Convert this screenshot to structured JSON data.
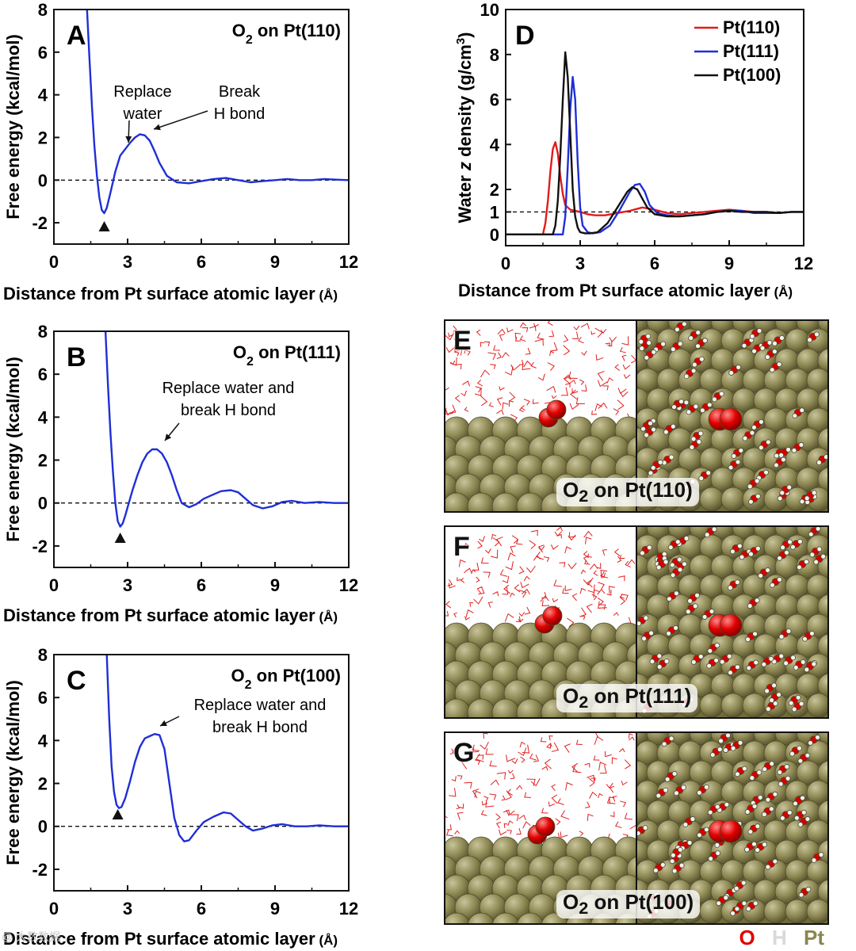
{
  "colors": {
    "red": "#e41a1c",
    "blue": "#1f2fd6",
    "black": "#111111",
    "oxygen": "#e00000",
    "hydrogen": "#e6e6e6",
    "platinum": "#8b8651"
  },
  "chart_data": [
    {
      "id": "A",
      "type": "line",
      "panel_label": "A",
      "title": "O2 on Pt(110)",
      "title_parts": {
        "prefix": "O",
        "sub": "2",
        "suffix": " on Pt(110)"
      },
      "xlabel": "Distance from Pt surface atomic layer",
      "xlabel_unit": " (Å)",
      "ylabel": "Free energy (kcal/mol)",
      "xlim": [
        0,
        12
      ],
      "ylim": [
        -3,
        8
      ],
      "xticks": [
        0,
        3,
        6,
        9,
        12
      ],
      "yticks": [
        -2,
        0,
        2,
        4,
        6,
        8
      ],
      "reference_line": 0,
      "minimum_marker_x": 2.05,
      "series": [
        {
          "name": "Pt(110)",
          "color": "blue",
          "x": [
            1.35,
            1.45,
            1.55,
            1.65,
            1.75,
            1.85,
            1.95,
            2.05,
            2.15,
            2.3,
            2.5,
            2.7,
            2.9,
            3.1,
            3.3,
            3.5,
            3.7,
            3.9,
            4.1,
            4.3,
            4.6,
            5.0,
            5.5,
            6.0,
            6.5,
            7.0,
            7.5,
            8.0,
            8.5,
            9.0,
            9.5,
            10.0,
            10.5,
            11.0,
            11.5,
            12.0
          ],
          "y": [
            8,
            5.6,
            3.4,
            1.6,
            0.2,
            -0.8,
            -1.4,
            -1.55,
            -1.3,
            -0.6,
            0.4,
            1.15,
            1.45,
            1.75,
            2.0,
            2.15,
            2.1,
            1.85,
            1.35,
            0.8,
            0.2,
            -0.1,
            -0.15,
            -0.05,
            0.05,
            0.1,
            0.0,
            -0.1,
            -0.05,
            0.0,
            0.05,
            0.0,
            0.0,
            0.05,
            0.02,
            0.0
          ]
        }
      ],
      "annotations": [
        {
          "text": [
            "Replace",
            "water"
          ]
        },
        {
          "text": [
            "Break",
            "H bond"
          ]
        }
      ]
    },
    {
      "id": "B",
      "type": "line",
      "panel_label": "B",
      "title": "O2 on Pt(111)",
      "title_parts": {
        "prefix": "O",
        "sub": "2",
        "suffix": " on Pt(111)"
      },
      "xlabel": "Distance from Pt surface atomic layer",
      "xlabel_unit": " (Å)",
      "ylabel": "Free energy (kcal/mol)",
      "xlim": [
        0,
        12
      ],
      "ylim": [
        -3,
        8
      ],
      "xticks": [
        0,
        3,
        6,
        9,
        12
      ],
      "yticks": [
        -2,
        0,
        2,
        4,
        6,
        8
      ],
      "reference_line": 0,
      "minimum_marker_x": 2.7,
      "series": [
        {
          "name": "Pt(111)",
          "color": "blue",
          "x": [
            2.1,
            2.2,
            2.3,
            2.4,
            2.5,
            2.6,
            2.7,
            2.8,
            2.9,
            3.0,
            3.2,
            3.4,
            3.6,
            3.8,
            4.0,
            4.2,
            4.4,
            4.6,
            4.8,
            5.0,
            5.2,
            5.5,
            5.8,
            6.1,
            6.4,
            6.8,
            7.2,
            7.5,
            7.8,
            8.1,
            8.5,
            8.9,
            9.3,
            9.7,
            10.2,
            10.8,
            11.4,
            12.0
          ],
          "y": [
            8,
            5.5,
            3.3,
            1.5,
            0.0,
            -0.85,
            -1.1,
            -0.95,
            -0.6,
            -0.2,
            0.6,
            1.3,
            1.9,
            2.3,
            2.5,
            2.5,
            2.3,
            1.9,
            1.3,
            0.6,
            0.0,
            -0.2,
            -0.05,
            0.2,
            0.35,
            0.55,
            0.6,
            0.5,
            0.2,
            -0.1,
            -0.25,
            -0.15,
            0.05,
            0.1,
            0.0,
            0.05,
            0.0,
            0.0
          ]
        }
      ],
      "annotations": [
        {
          "text": [
            "Replace water and",
            "break H bond"
          ]
        }
      ]
    },
    {
      "id": "C",
      "type": "line",
      "panel_label": "C",
      "title": "O2 on Pt(100)",
      "title_parts": {
        "prefix": "O",
        "sub": "2",
        "suffix": " on Pt(100)"
      },
      "xlabel": "Distance from Pt surface atomic layer",
      "xlabel_unit": " (Å)",
      "ylabel": "Free energy (kcal/mol)",
      "xlim": [
        0,
        12
      ],
      "ylim": [
        -3,
        8
      ],
      "xticks": [
        0,
        3,
        6,
        9,
        12
      ],
      "yticks": [
        -2,
        0,
        2,
        4,
        6,
        8
      ],
      "reference_line": 0,
      "minimum_marker_x": 2.6,
      "series": [
        {
          "name": "Pt(100)",
          "color": "blue",
          "x": [
            2.15,
            2.25,
            2.35,
            2.45,
            2.55,
            2.65,
            2.75,
            2.9,
            3.1,
            3.3,
            3.5,
            3.7,
            3.9,
            4.1,
            4.3,
            4.5,
            4.7,
            4.9,
            5.1,
            5.3,
            5.5,
            5.8,
            6.1,
            6.5,
            6.9,
            7.2,
            7.5,
            7.8,
            8.1,
            8.5,
            8.9,
            9.3,
            9.8,
            10.3,
            10.8,
            11.4,
            12.0
          ],
          "y": [
            8,
            5.0,
            2.8,
            1.6,
            1.0,
            0.85,
            0.9,
            1.3,
            2.1,
            3.0,
            3.7,
            4.1,
            4.2,
            4.3,
            4.25,
            3.6,
            2.0,
            0.4,
            -0.4,
            -0.7,
            -0.65,
            -0.2,
            0.2,
            0.45,
            0.65,
            0.6,
            0.3,
            0.0,
            -0.2,
            -0.1,
            0.05,
            0.1,
            0.0,
            0.0,
            0.05,
            0.0,
            0.0
          ]
        }
      ],
      "annotations": [
        {
          "text": [
            "Replace water and",
            "break H bond"
          ]
        }
      ]
    },
    {
      "id": "D",
      "type": "line",
      "panel_label": "D",
      "xlabel": "Distance from Pt surface atomic layer",
      "xlabel_unit": " (Å)",
      "ylabel": "Water z density (g/cm3)",
      "ylabel_parts": {
        "a": "Water ",
        "b": "z",
        "c": " density (g/cm",
        "sup": "3",
        "d": ")"
      },
      "xlim": [
        0,
        12
      ],
      "ylim": [
        -0.5,
        10
      ],
      "xticks": [
        0,
        3,
        6,
        9,
        12
      ],
      "yticks": [
        0,
        1,
        2,
        4,
        6,
        8,
        10
      ],
      "reference_line": 1,
      "legend": {
        "position": "top-right",
        "entries": [
          "Pt(110)",
          "Pt(111)",
          "Pt(100)"
        ]
      },
      "series": [
        {
          "name": "Pt(110)",
          "color": "red",
          "x": [
            -0.5,
            1.5,
            1.6,
            1.7,
            1.8,
            1.9,
            2.0,
            2.1,
            2.2,
            2.3,
            2.4,
            2.6,
            2.8,
            3.0,
            3.3,
            3.6,
            4.0,
            4.5,
            5.0,
            5.5,
            6.0,
            6.5,
            7.0,
            7.5,
            8.0,
            8.5,
            9.0,
            9.5,
            10.0,
            10.5,
            11.0,
            11.5,
            12.0
          ],
          "y": [
            0,
            0,
            0.5,
            1.5,
            2.8,
            3.8,
            4.1,
            3.6,
            2.6,
            1.8,
            1.3,
            1.1,
            1.05,
            1.0,
            0.9,
            0.85,
            0.85,
            0.95,
            1.05,
            1.2,
            1.1,
            0.95,
            0.9,
            0.95,
            1.0,
            1.05,
            1.1,
            1.05,
            1.0,
            1.0,
            0.95,
            1.0,
            1.0
          ]
        },
        {
          "name": "Pt(111)",
          "color": "blue",
          "x": [
            -0.5,
            2.3,
            2.4,
            2.5,
            2.6,
            2.7,
            2.8,
            2.9,
            3.0,
            3.1,
            3.3,
            3.5,
            3.8,
            4.2,
            4.6,
            5.0,
            5.2,
            5.4,
            5.6,
            5.8,
            6.1,
            6.5,
            7.0,
            7.5,
            8.0,
            8.5,
            9.0,
            9.5,
            10.0,
            10.5,
            11.0,
            11.5,
            12.0
          ],
          "y": [
            0,
            0,
            0.8,
            3.0,
            5.6,
            7.0,
            6.0,
            3.2,
            1.2,
            0.4,
            0.1,
            0.05,
            0.1,
            0.4,
            1.1,
            1.9,
            2.2,
            2.25,
            1.9,
            1.3,
            0.95,
            0.85,
            0.8,
            0.85,
            0.9,
            1.0,
            1.05,
            1.05,
            0.95,
            0.95,
            0.95,
            1.0,
            1.0
          ]
        },
        {
          "name": "Pt(100)",
          "color": "black",
          "x": [
            -0.5,
            1.9,
            2.0,
            2.1,
            2.2,
            2.3,
            2.4,
            2.5,
            2.6,
            2.7,
            2.8,
            2.9,
            3.0,
            3.2,
            3.4,
            3.7,
            4.1,
            4.5,
            4.9,
            5.1,
            5.3,
            5.5,
            5.7,
            6.0,
            6.5,
            7.0,
            7.5,
            8.0,
            8.5,
            9.0,
            9.5,
            10.0,
            10.5,
            11.0,
            11.5,
            12.0
          ],
          "y": [
            0,
            0,
            0.4,
            1.5,
            3.5,
            6.0,
            8.1,
            7.0,
            4.5,
            2.0,
            0.8,
            0.3,
            0.1,
            0.05,
            0.05,
            0.1,
            0.5,
            1.2,
            1.9,
            2.1,
            2.0,
            1.6,
            1.2,
            0.9,
            0.8,
            0.8,
            0.85,
            0.9,
            1.0,
            1.05,
            1.0,
            1.0,
            1.0,
            0.95,
            1.0,
            1.0
          ]
        }
      ]
    }
  ],
  "image_panels": [
    {
      "label": "E",
      "caption_prefix": "O",
      "caption_sub": "2",
      "caption_suffix": " on Pt(110)"
    },
    {
      "label": "F",
      "caption_prefix": "O",
      "caption_sub": "2",
      "caption_suffix": " on Pt(111)"
    },
    {
      "label": "G",
      "caption_prefix": "O",
      "caption_sub": "2",
      "caption_suffix": " on Pt(100)"
    }
  ],
  "atom_legend": {
    "o": "O",
    "h": "H",
    "pt": "Pt"
  },
  "watermark": "@ 大数数据"
}
